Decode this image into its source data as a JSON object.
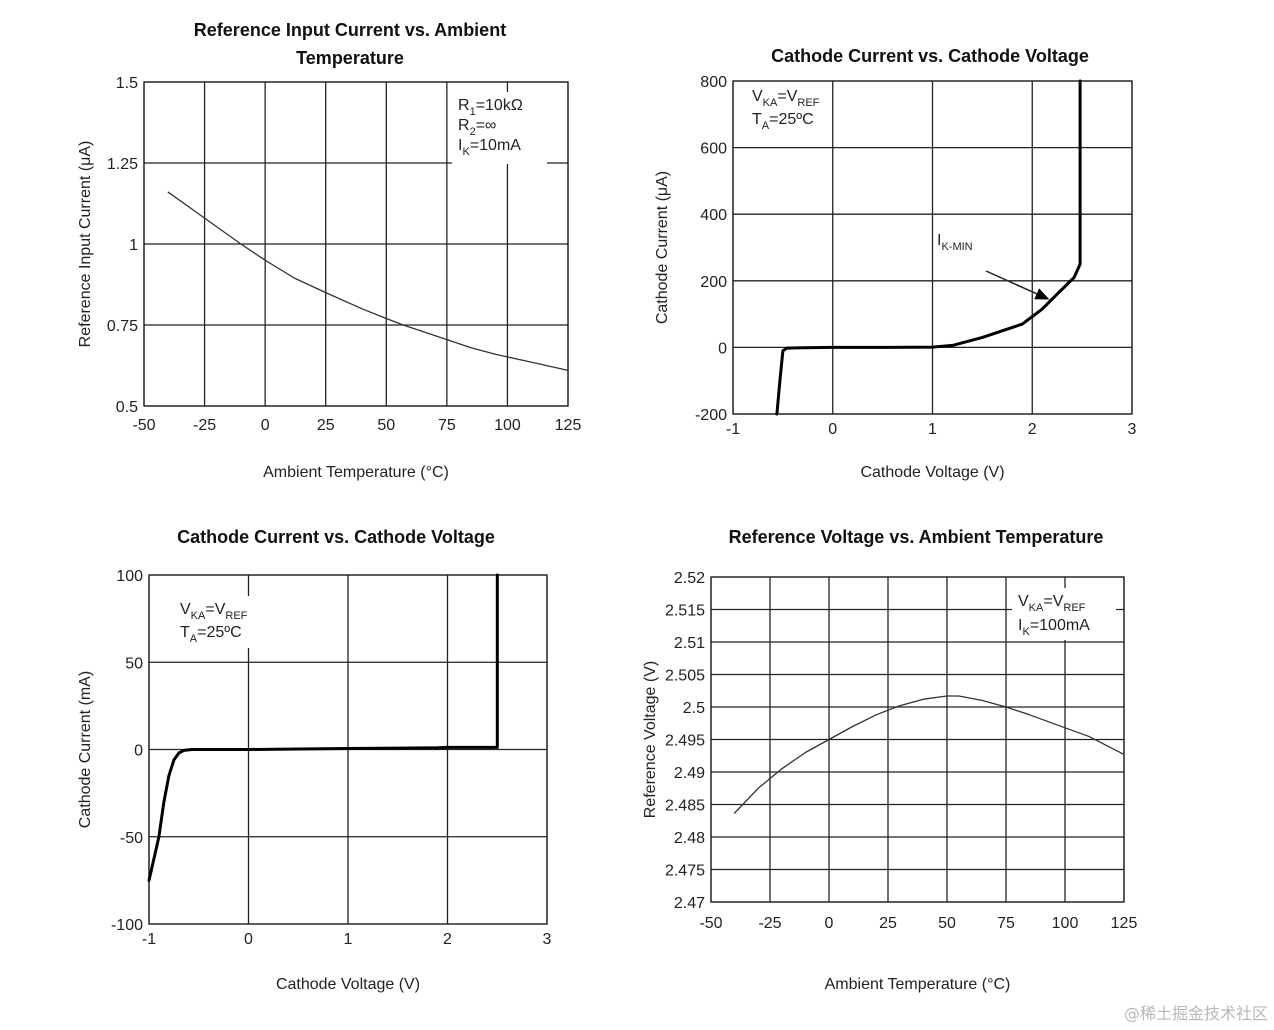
{
  "chart_data": [
    {
      "id": "ref-input-current",
      "type": "line",
      "title": [
        "Reference Input Current vs. Ambient",
        "Temperature"
      ],
      "xlabel": "Ambient Temperature (°C)",
      "ylabel": "Reference Input Current (μA)",
      "xlim": [
        -50,
        125
      ],
      "ylim": [
        0.5,
        1.5
      ],
      "xticks": [
        -50,
        -25,
        0,
        25,
        50,
        75,
        100,
        125
      ],
      "xtick_labels": [
        "-50",
        "-25",
        "0",
        "25",
        "50",
        "75",
        "100",
        "125"
      ],
      "yticks": [
        0.5,
        0.75,
        1,
        1.25,
        1.5
      ],
      "ytick_labels": [
        "0.5",
        "0.75",
        "1",
        "1.25",
        "1.5"
      ],
      "grid": true,
      "line_weight": "thin",
      "annotations": [
        {
          "main": "R",
          "sub": "1",
          "rest": "=10kΩ"
        },
        {
          "main": "R",
          "sub": "2",
          "rest": "=∞"
        },
        {
          "main": "I",
          "sub": "K",
          "rest": "=10mA"
        }
      ],
      "annotation_position": "top-right",
      "series": [
        {
          "name": "I_REF",
          "x": [
            -40,
            -25,
            -10,
            0,
            12,
            25,
            40,
            50,
            57,
            75,
            85,
            95,
            110,
            125
          ],
          "y": [
            1.16,
            1.08,
            1.0,
            0.95,
            0.895,
            0.85,
            0.8,
            0.77,
            0.75,
            0.705,
            0.68,
            0.66,
            0.635,
            0.61
          ]
        }
      ]
    },
    {
      "id": "cathode-current-ua",
      "type": "line",
      "title": [
        "Cathode Current vs. Cathode Voltage"
      ],
      "xlabel": "Cathode Voltage (V)",
      "ylabel": "Cathode Current (μA)",
      "xlim": [
        -1,
        3
      ],
      "ylim": [
        -200,
        800
      ],
      "xticks": [
        -1,
        0,
        1,
        2,
        3
      ],
      "xtick_labels": [
        "-1",
        "0",
        "1",
        "2",
        "3"
      ],
      "yticks": [
        -200,
        0,
        200,
        400,
        600,
        800
      ],
      "ytick_labels": [
        "-200",
        "0",
        "200",
        "400",
        "600",
        "800"
      ],
      "grid": true,
      "line_weight": "bold",
      "annotations": [
        {
          "main": "V",
          "sub": "KA",
          "rest": "=V",
          "sub2": "REF"
        },
        {
          "main": "T",
          "sub": "A",
          "rest": "=25ºC"
        }
      ],
      "annotation_position": "top-left",
      "callout": {
        "main": "I",
        "sub": "K-MIN",
        "points_to": [
          2.2,
          140
        ]
      },
      "series": [
        {
          "name": "I_K",
          "x": [
            -0.56,
            -0.53,
            -0.5,
            -0.46,
            -0.3,
            0,
            0.5,
            1.0,
            1.2,
            1.5,
            1.9,
            2.1,
            2.25,
            2.42,
            2.48,
            2.48,
            2.48
          ],
          "y": [
            -200,
            -100,
            -10,
            -2,
            -1,
            0,
            0,
            1,
            6,
            30,
            70,
            115,
            160,
            210,
            250,
            500,
            800
          ]
        }
      ]
    },
    {
      "id": "cathode-current-ma",
      "type": "line",
      "title": [
        "Cathode Current vs. Cathode Voltage"
      ],
      "xlabel": "Cathode Voltage (V)",
      "ylabel": "Cathode Current (mA)",
      "xlim": [
        -1,
        3
      ],
      "ylim": [
        -100,
        100
      ],
      "xticks": [
        -1,
        0,
        1,
        2,
        3
      ],
      "xtick_labels": [
        "-1",
        "0",
        "1",
        "2",
        "3"
      ],
      "yticks": [
        -100,
        -50,
        0,
        50,
        100
      ],
      "ytick_labels": [
        "-100",
        "-50",
        "0",
        "50",
        "100"
      ],
      "grid": true,
      "line_weight": "bold",
      "annotations": [
        {
          "main": "V",
          "sub": "KA",
          "rest": "=V",
          "sub2": "REF"
        },
        {
          "main": "T",
          "sub": "A",
          "rest": "=25ºC"
        }
      ],
      "annotation_position": "top-left",
      "series": [
        {
          "name": "I_K",
          "x": [
            -1.0,
            -0.9,
            -0.85,
            -0.8,
            -0.75,
            -0.7,
            -0.65,
            -0.57,
            -0.3,
            0,
            0.5,
            1.0,
            1.5,
            1.9,
            2.0,
            2.5,
            2.5
          ],
          "y": [
            -75,
            -50,
            -30,
            -15,
            -6,
            -2,
            -0.5,
            0,
            0,
            0,
            0.3,
            0.6,
            0.8,
            1,
            1.2,
            1.2,
            100
          ]
        }
      ]
    },
    {
      "id": "ref-voltage",
      "type": "line",
      "title": [
        "Reference Voltage vs. Ambient Temperature"
      ],
      "xlabel": "Ambient Temperature (°C)",
      "ylabel": "Reference Voltage (V)",
      "xlim": [
        -50,
        125
      ],
      "ylim": [
        2.47,
        2.52
      ],
      "xticks": [
        -50,
        -25,
        0,
        25,
        50,
        75,
        100,
        125
      ],
      "xtick_labels": [
        "-50",
        "-25",
        "0",
        "25",
        "50",
        "75",
        "100",
        "125"
      ],
      "yticks": [
        2.47,
        2.475,
        2.48,
        2.485,
        2.49,
        2.495,
        2.5,
        2.505,
        2.51,
        2.515,
        2.52
      ],
      "ytick_labels": [
        "2.47",
        "2.475",
        "2.48",
        "2.485",
        "2.49",
        "2.495",
        "2.5",
        "2.505",
        "2.51",
        "2.515",
        "2.52"
      ],
      "grid": true,
      "line_weight": "thin",
      "annotations": [
        {
          "main": "V",
          "sub": "KA",
          "rest": "=V",
          "sub2": "REF"
        },
        {
          "main": "I",
          "sub": "K",
          "rest": "=100mA"
        }
      ],
      "annotation_position": "top-right",
      "series": [
        {
          "name": "V_REF",
          "x": [
            -40,
            -30,
            -20,
            -10,
            0,
            10,
            20,
            30,
            40,
            50,
            55,
            65,
            75,
            85,
            100,
            110,
            125
          ],
          "y": [
            2.4837,
            2.4875,
            2.4905,
            2.493,
            2.495,
            2.497,
            2.4988,
            2.5002,
            2.5012,
            2.5017,
            2.5017,
            2.501,
            2.5,
            2.4988,
            2.4968,
            2.4955,
            2.4927
          ]
        }
      ]
    }
  ],
  "watermark": "@稀土掘金技术社区"
}
